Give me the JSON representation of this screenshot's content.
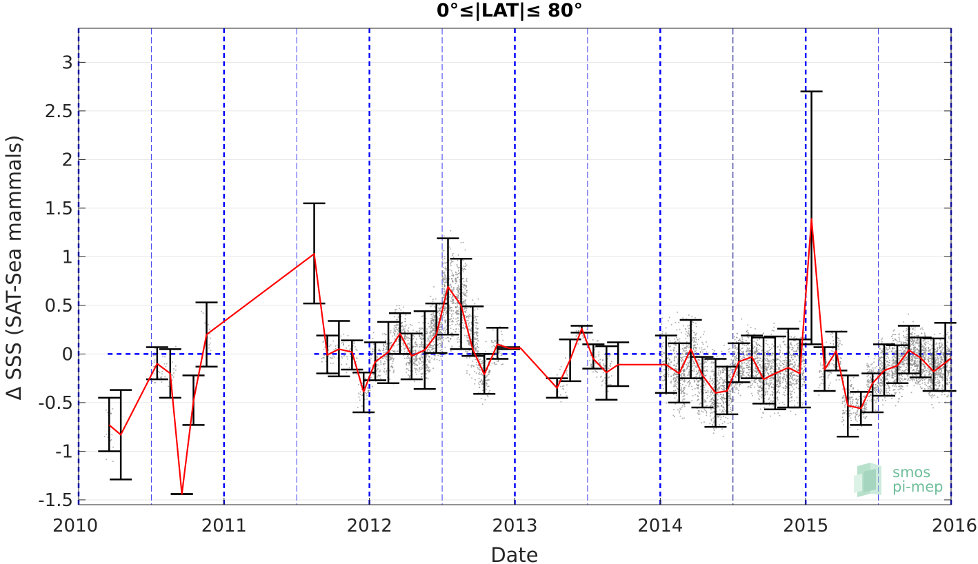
{
  "chart_data": {
    "type": "line",
    "title": "0°≤|LAT|≤ 80°",
    "xlabel": "Date",
    "ylabel": "Δ SSS (SAT-Sea mammals)",
    "xlim": [
      2010,
      2016
    ],
    "ylim": [
      -1.55,
      3.35
    ],
    "xticks": [
      2010,
      2011,
      2012,
      2013,
      2014,
      2015,
      2016
    ],
    "xtick_labels": [
      "2010",
      "2011",
      "2012",
      "2013",
      "2014",
      "2015",
      "2016"
    ],
    "yticks": [
      -1.5,
      -1,
      -0.5,
      0,
      0.5,
      1,
      1.5,
      2,
      2.5,
      3
    ],
    "ytick_labels": [
      "-1.5",
      "-1",
      "-0.5",
      "0",
      "0.5",
      "1",
      "1.5",
      "2",
      "2.5",
      "3"
    ],
    "grid": true,
    "colors": {
      "mean_line": "#ff0000",
      "error_bars": "#000000",
      "scatter": "#8c8c8c",
      "reference_lines": "#0000ff"
    },
    "year_lines": [
      2010,
      2011,
      2012,
      2013,
      2014,
      2015,
      2016
    ],
    "half_year_lines": [
      2010.5,
      2011.5,
      2012.5,
      2013.5,
      2014.5,
      2015.5
    ],
    "zero_reference_segments": [
      [
        2010.2,
        2011.0
      ],
      [
        2011.62,
        2013.0
      ],
      [
        2013.62,
        2014.0
      ],
      [
        2014.05,
        2016.0
      ]
    ],
    "series": [
      {
        "name": "",
        "x": [
          2010.21,
          2010.29,
          2010.54,
          2010.63,
          2010.71,
          2010.79,
          2010.88,
          2011.62,
          2011.71,
          2011.79,
          2011.88,
          2011.96,
          2012.04,
          2012.13,
          2012.21,
          2012.29,
          2012.38,
          2012.46,
          2012.54,
          2012.63,
          2012.71,
          2012.79,
          2012.88,
          2012.96,
          2013.04,
          2013.29,
          2013.38,
          2013.46,
          2013.54,
          2013.63,
          2013.71,
          2014.04,
          2014.13,
          2014.21,
          2014.29,
          2014.38,
          2014.46,
          2014.54,
          2014.63,
          2014.71,
          2014.79,
          2014.88,
          2014.96,
          2015.04,
          2015.13,
          2015.21,
          2015.29,
          2015.38,
          2015.46,
          2015.54,
          2015.63,
          2015.71,
          2015.79,
          2015.88,
          2015.96,
          2016.0
        ],
        "y": [
          -0.73,
          -0.83,
          -0.1,
          -0.2,
          -1.44,
          -0.48,
          0.2,
          1.03,
          -0.01,
          0.05,
          0.02,
          -0.39,
          -0.08,
          0.02,
          0.21,
          -0.02,
          0.04,
          0.2,
          0.69,
          0.5,
          0.05,
          -0.21,
          0.1,
          0.06,
          0.06,
          -0.35,
          -0.06,
          0.26,
          -0.05,
          -0.19,
          -0.11,
          -0.11,
          -0.2,
          0.05,
          -0.22,
          -0.4,
          -0.38,
          -0.08,
          -0.03,
          -0.26,
          -0.2,
          -0.14,
          -0.2,
          1.39,
          -0.16,
          0.03,
          -0.53,
          -0.56,
          -0.3,
          -0.17,
          -0.12,
          0.04,
          -0.04,
          -0.18,
          -0.09,
          -0.04
        ],
        "error_bars": [
          [
            2010.21,
            -1.0,
            -0.45
          ],
          [
            2010.29,
            -1.29,
            -0.37
          ],
          [
            2010.54,
            -0.26,
            0.07
          ],
          [
            2010.63,
            -0.45,
            0.05
          ],
          [
            2010.71,
            -1.44,
            -1.44
          ],
          [
            2010.79,
            -0.73,
            -0.22
          ],
          [
            2010.88,
            -0.13,
            0.53
          ],
          [
            2011.62,
            0.52,
            1.55
          ],
          [
            2011.71,
            -0.2,
            0.19
          ],
          [
            2011.79,
            -0.23,
            0.34
          ],
          [
            2011.88,
            -0.16,
            0.14
          ],
          [
            2011.96,
            -0.6,
            -0.19
          ],
          [
            2012.04,
            -0.27,
            0.12
          ],
          [
            2012.13,
            -0.3,
            0.33
          ],
          [
            2012.21,
            0.0,
            0.42
          ],
          [
            2012.29,
            -0.26,
            0.21
          ],
          [
            2012.38,
            -0.36,
            0.44
          ],
          [
            2012.46,
            0.01,
            0.52
          ],
          [
            2012.54,
            0.2,
            1.19
          ],
          [
            2012.63,
            0.05,
            0.98
          ],
          [
            2012.71,
            -0.02,
            0.49
          ],
          [
            2012.79,
            -0.41,
            0.0
          ],
          [
            2012.88,
            -0.05,
            0.27
          ],
          [
            2012.96,
            0.05,
            0.07
          ],
          [
            2013.29,
            -0.45,
            -0.25
          ],
          [
            2013.38,
            -0.28,
            0.15
          ],
          [
            2013.46,
            0.22,
            0.29
          ],
          [
            2013.54,
            -0.15,
            0.1
          ],
          [
            2013.63,
            -0.47,
            0.08
          ],
          [
            2013.71,
            -0.33,
            0.12
          ],
          [
            2014.04,
            -0.4,
            0.19
          ],
          [
            2014.13,
            -0.5,
            0.11
          ],
          [
            2014.21,
            -0.25,
            0.35
          ],
          [
            2014.29,
            -0.55,
            -0.03
          ],
          [
            2014.38,
            -0.75,
            -0.05
          ],
          [
            2014.46,
            -0.62,
            -0.13
          ],
          [
            2014.54,
            -0.29,
            0.11
          ],
          [
            2014.63,
            -0.25,
            0.19
          ],
          [
            2014.71,
            -0.51,
            0.17
          ],
          [
            2014.79,
            -0.57,
            0.18
          ],
          [
            2014.88,
            -0.55,
            0.26
          ],
          [
            2014.96,
            -0.55,
            0.15
          ],
          [
            2015.04,
            0.1,
            2.7
          ],
          [
            2015.13,
            -0.38,
            0.07
          ],
          [
            2015.21,
            -0.17,
            0.23
          ],
          [
            2015.29,
            -0.85,
            -0.22
          ],
          [
            2015.38,
            -0.73,
            -0.39
          ],
          [
            2015.46,
            -0.6,
            -0.2
          ],
          [
            2015.54,
            -0.43,
            0.1
          ],
          [
            2015.63,
            -0.3,
            0.09
          ],
          [
            2015.71,
            -0.2,
            0.29
          ],
          [
            2015.79,
            -0.24,
            0.17
          ],
          [
            2015.88,
            -0.38,
            0.16
          ],
          [
            2015.96,
            -0.38,
            0.32
          ]
        ]
      }
    ],
    "scatter_clusters": [
      [
        2010.21,
        -0.8,
        0.3,
        20
      ],
      [
        2010.54,
        -0.15,
        0.15,
        30
      ],
      [
        2010.63,
        -0.2,
        0.2,
        20
      ],
      [
        2010.88,
        0.3,
        0.3,
        15
      ],
      [
        2011.71,
        0.0,
        0.15,
        30
      ],
      [
        2011.79,
        0.05,
        0.15,
        30
      ],
      [
        2011.88,
        0.0,
        0.15,
        30
      ],
      [
        2011.96,
        -0.35,
        0.2,
        40
      ],
      [
        2012.04,
        -0.1,
        0.2,
        80
      ],
      [
        2012.13,
        0.0,
        0.2,
        120
      ],
      [
        2012.21,
        0.2,
        0.2,
        140
      ],
      [
        2012.29,
        0.0,
        0.2,
        160
      ],
      [
        2012.38,
        0.05,
        0.25,
        180
      ],
      [
        2012.46,
        0.25,
        0.25,
        280
      ],
      [
        2012.54,
        0.6,
        0.4,
        300
      ],
      [
        2012.63,
        0.55,
        0.35,
        280
      ],
      [
        2012.71,
        0.15,
        0.3,
        200
      ],
      [
        2012.79,
        -0.2,
        0.2,
        120
      ],
      [
        2012.88,
        0.05,
        0.15,
        60
      ],
      [
        2013.33,
        -0.3,
        0.15,
        30
      ],
      [
        2013.46,
        0.2,
        0.1,
        30
      ],
      [
        2013.55,
        -0.05,
        0.15,
        40
      ],
      [
        2013.63,
        -0.15,
        0.2,
        40
      ],
      [
        2014.04,
        -0.1,
        0.35,
        120
      ],
      [
        2014.13,
        -0.2,
        0.35,
        240
      ],
      [
        2014.21,
        0.0,
        0.3,
        200
      ],
      [
        2014.29,
        -0.25,
        0.35,
        180
      ],
      [
        2014.38,
        -0.4,
        0.3,
        200
      ],
      [
        2014.46,
        -0.35,
        0.3,
        200
      ],
      [
        2014.54,
        -0.1,
        0.25,
        220
      ],
      [
        2014.63,
        -0.05,
        0.25,
        240
      ],
      [
        2014.71,
        -0.2,
        0.3,
        220
      ],
      [
        2014.79,
        -0.2,
        0.3,
        220
      ],
      [
        2014.88,
        -0.15,
        0.3,
        200
      ],
      [
        2014.96,
        -0.15,
        0.3,
        180
      ],
      [
        2015.13,
        -0.15,
        0.2,
        60
      ],
      [
        2015.21,
        0.0,
        0.2,
        60
      ],
      [
        2015.29,
        -0.5,
        0.2,
        100
      ],
      [
        2015.38,
        -0.55,
        0.15,
        100
      ],
      [
        2015.46,
        -0.3,
        0.2,
        140
      ],
      [
        2015.54,
        -0.15,
        0.25,
        220
      ],
      [
        2015.63,
        -0.1,
        0.25,
        260
      ],
      [
        2015.71,
        0.0,
        0.25,
        280
      ],
      [
        2015.79,
        -0.05,
        0.25,
        280
      ],
      [
        2015.88,
        -0.15,
        0.25,
        280
      ],
      [
        2015.96,
        -0.1,
        0.25,
        260
      ]
    ]
  },
  "logo": {
    "line1": "smos",
    "line2": "pi-mep"
  }
}
